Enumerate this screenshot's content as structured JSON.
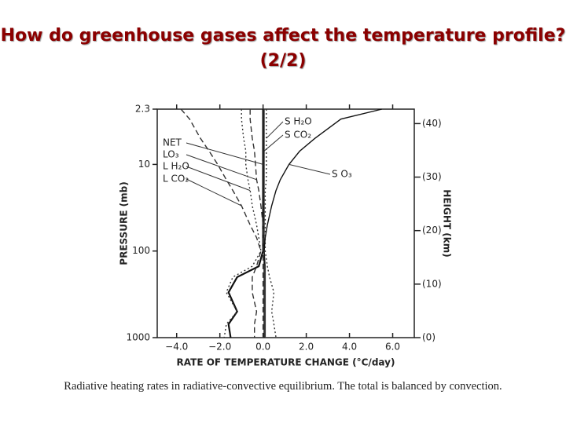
{
  "title": "How do greenhouse gases affect the temperature profile? (2/2)",
  "caption": "Radiative heating rates in radiative-convective equilibrium.  The total is balanced by convection.",
  "chart_data": {
    "type": "profile",
    "x_label": "RATE OF TEMPERATURE CHANGE (°C/day)",
    "y_label": "PRESSURE (mb)",
    "y2_label": "HEIGHT (km)",
    "xlim": [
      -4.9,
      7.0
    ],
    "xticks": [
      {
        "value": -4,
        "label": "−4.0"
      },
      {
        "value": -2,
        "label": "−2.0"
      },
      {
        "value": 0,
        "label": "0.0"
      },
      {
        "value": 2,
        "label": "2.0"
      },
      {
        "value": 4,
        "label": "4.0"
      },
      {
        "value": 6,
        "label": "6.0"
      }
    ],
    "ylim": [
      1000,
      2.3
    ],
    "y_log": true,
    "yticks": [
      2.3,
      10,
      100,
      1000
    ],
    "y2lim": [
      0,
      42.7
    ],
    "y2ticks": [
      {
        "value": 0,
        "label": "(0)"
      },
      {
        "value": 10,
        "label": "(10)"
      },
      {
        "value": 20,
        "label": "(20)"
      },
      {
        "value": 30,
        "label": "(30)"
      },
      {
        "value": 40,
        "label": "(40)"
      }
    ],
    "levels": [
      2.3,
      3,
      5,
      7,
      10,
      15,
      20,
      30,
      50,
      70,
      100,
      150,
      200,
      300,
      500,
      700,
      1000
    ],
    "series": [
      {
        "name": "NET",
        "color": "#111",
        "line_style": "solid",
        "values": [
          0,
          0,
          0,
          0,
          0,
          0,
          0,
          0,
          0,
          0,
          0,
          -0.2,
          -1.2,
          -1.6,
          -1.2,
          -1.6,
          -1.5
        ]
      },
      {
        "name": "LO₃",
        "color": "#333",
        "line_style": "dashed",
        "values": [
          -0.6,
          -0.6,
          -0.5,
          -0.4,
          -0.35,
          -0.3,
          -0.2,
          -0.1,
          0,
          0,
          0,
          0,
          0,
          0,
          0,
          0,
          0
        ]
      },
      {
        "name": "L H₂O",
        "color": "#333",
        "line_style": "dotted",
        "values": [
          -1.0,
          -1.0,
          -0.9,
          -0.8,
          -0.8,
          -0.7,
          -0.6,
          -0.5,
          -0.3,
          -0.2,
          -0.1,
          -0.5,
          -1.4,
          -1.7,
          -1.2,
          -1.7,
          -1.8
        ]
      },
      {
        "name": "L CO₂",
        "color": "#333",
        "line_style": "dashed",
        "values": [
          -3.8,
          -3.4,
          -2.9,
          -2.5,
          -2.1,
          -1.7,
          -1.4,
          -1.0,
          -0.6,
          -0.3,
          -0.1,
          -0.3,
          -0.5,
          -0.5,
          -0.3,
          -0.4,
          -0.4
        ]
      },
      {
        "name": "S H₂O",
        "color": "#333",
        "line_style": "dotted",
        "values": [
          0.15,
          0.15,
          0.15,
          0.15,
          0.15,
          0.15,
          0.1,
          0.1,
          0.1,
          0.1,
          0.1,
          0.2,
          0.3,
          0.5,
          0.4,
          0.5,
          0.6
        ]
      },
      {
        "name": "S CO₂",
        "color": "#333",
        "line_style": "solid",
        "values": [
          0.05,
          0.05,
          0.05,
          0.05,
          0.05,
          0.05,
          0.05,
          0.05,
          0.05,
          0.05,
          0.05,
          0.1,
          0.1,
          0.1,
          0.1,
          0.1,
          0.1
        ]
      },
      {
        "name": "S O₃",
        "color": "#111",
        "line_style": "solid",
        "values": [
          5.5,
          3.6,
          2.4,
          1.7,
          1.2,
          0.8,
          0.6,
          0.4,
          0.2,
          0.1,
          0.05,
          0.05,
          0.05,
          0.05,
          0.05,
          0.05,
          0.05
        ]
      }
    ]
  }
}
